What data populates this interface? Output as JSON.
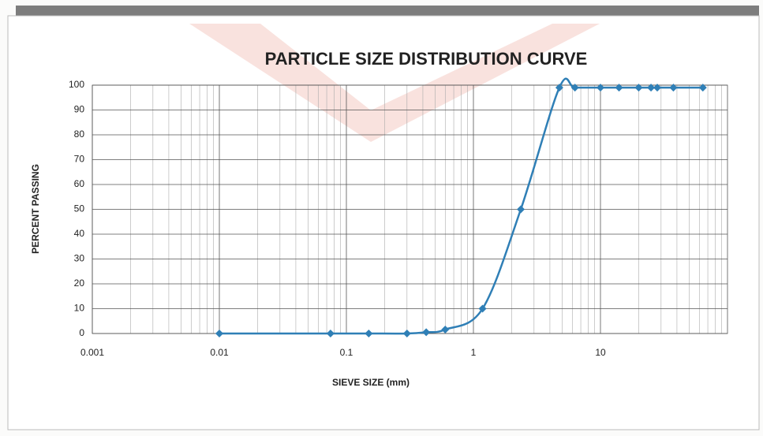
{
  "chart_data": {
    "type": "line",
    "title": "PARTICLE SIZE DISTRIBUTION CURVE",
    "x_label": "SIEVE SIZE (mm)",
    "y_label": "PERCENT PASSING",
    "x_scale": "log",
    "xlim": [
      0.001,
      100
    ],
    "xticks": [
      0.001,
      0.01,
      0.1,
      1,
      10
    ],
    "ylim": [
      0,
      100
    ],
    "yticks": [
      0,
      10,
      20,
      30,
      40,
      50,
      60,
      70,
      80,
      90,
      100
    ],
    "grid": true,
    "minor_grid": true,
    "series": [
      {
        "color": "#2f7fb6",
        "x": [
          0.01,
          0.075,
          0.15,
          0.3,
          0.425,
          0.6,
          1.18,
          2.36,
          4.75,
          6.3,
          10,
          14,
          20,
          25,
          28,
          37.5,
          64
        ],
        "values": [
          0,
          0,
          0,
          0,
          0.5,
          1.6,
          10,
          50,
          99,
          99,
          99,
          99,
          99,
          99,
          99,
          99,
          99
        ]
      }
    ]
  }
}
